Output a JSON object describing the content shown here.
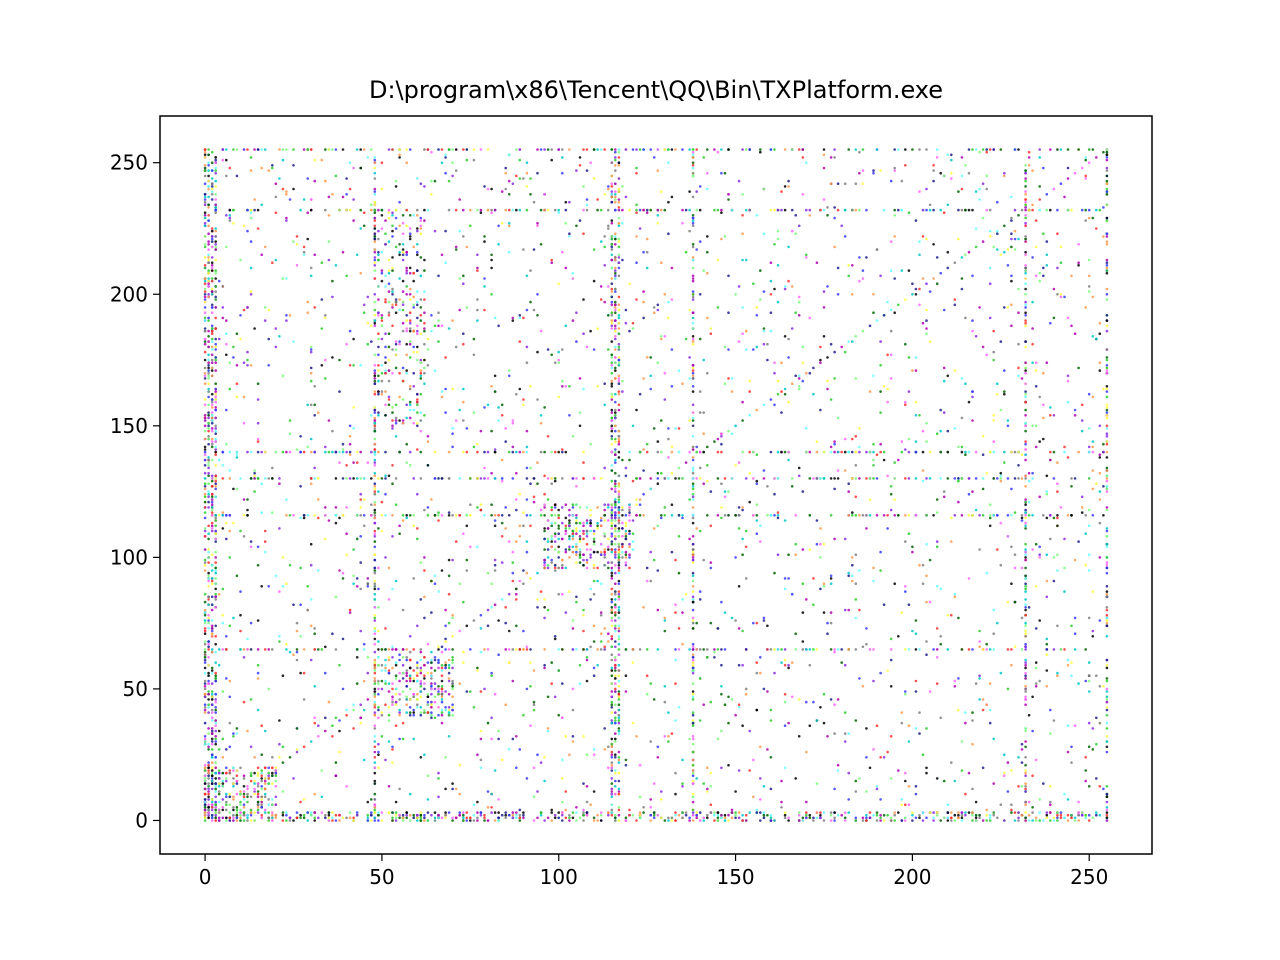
{
  "chart_data": {
    "type": "scatter",
    "title": "D:\\program\\x86\\Tencent\\QQ\\Bin\\TXPlatform.exe",
    "xlabel": "",
    "ylabel": "",
    "xlim": [
      -12.75,
      267.75
    ],
    "ylim": [
      -12.75,
      267.75
    ],
    "x_ticks": [
      0,
      50,
      100,
      150,
      200,
      250
    ],
    "y_ticks": [
      0,
      50,
      100,
      150,
      200,
      250
    ],
    "grid": false,
    "point_colors": [
      "#000000",
      "#1f1f8f",
      "#3a3aff",
      "#b000b0",
      "#ff66ff",
      "#ff3030",
      "#ff9a4d",
      "#2ecc2e",
      "#7cfc7c",
      "#00c8c8",
      "#66ffff",
      "#ffff44",
      "#8a2be2",
      "#006400",
      "#808080"
    ],
    "dense_columns": [
      0,
      1,
      2,
      3,
      48,
      115,
      116,
      117,
      138,
      232,
      255
    ],
    "dense_rows": [
      0,
      1,
      2,
      3,
      65,
      116,
      130,
      140,
      232,
      255
    ],
    "dense_blocks": [
      {
        "x": [
          96,
          120
        ],
        "y": [
          96,
          120
        ]
      },
      {
        "x": [
          48,
          70
        ],
        "y": [
          40,
          62
        ]
      },
      {
        "x": [
          48,
          62
        ],
        "y": [
          150,
          230
        ]
      },
      {
        "x": [
          0,
          20
        ],
        "y": [
          0,
          20
        ]
      }
    ],
    "diagonal": {
      "from": 0,
      "to": 255
    },
    "point_count": 6500
  }
}
